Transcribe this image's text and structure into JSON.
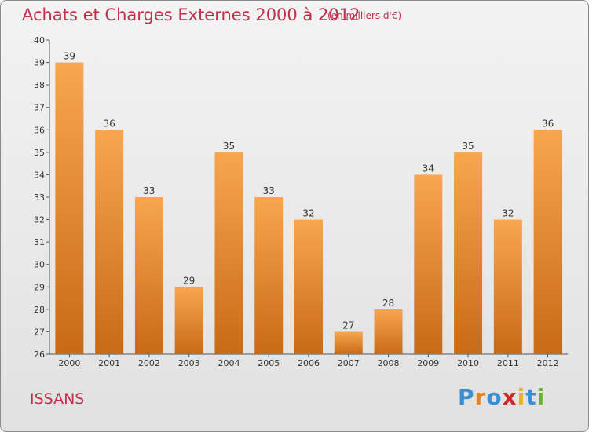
{
  "header": {
    "title": "Achats et Charges Externes 2000 à 2012",
    "subtitle": "(en milliers d'€)"
  },
  "footer": {
    "location": "ISSANS",
    "logo_text": "Proxiti"
  },
  "colors": {
    "title": "#c0304a",
    "bar_top": "#f8a650",
    "bar_bottom": "#c86a16",
    "logo_letters": [
      "#3b8fd1",
      "#e8821e",
      "#3b8fd1",
      "#cc2a2a",
      "#e8b51e",
      "#3b8fd1",
      "#6ab42d"
    ]
  },
  "chart_data": {
    "type": "bar",
    "title": "Achats et Charges Externes 2000 à 2012",
    "xlabel": "",
    "ylabel": "",
    "categories": [
      "2000",
      "2001",
      "2002",
      "2003",
      "2004",
      "2005",
      "2006",
      "2007",
      "2008",
      "2009",
      "2010",
      "2011",
      "2012"
    ],
    "values": [
      39,
      36,
      33,
      29,
      35,
      33,
      32,
      27,
      28,
      34,
      35,
      32,
      36
    ],
    "ylim": [
      26,
      40
    ],
    "yticks": [
      26,
      27,
      28,
      29,
      30,
      31,
      32,
      33,
      34,
      35,
      36,
      37,
      38,
      39,
      40
    ],
    "grid": false,
    "data_labels": true
  }
}
